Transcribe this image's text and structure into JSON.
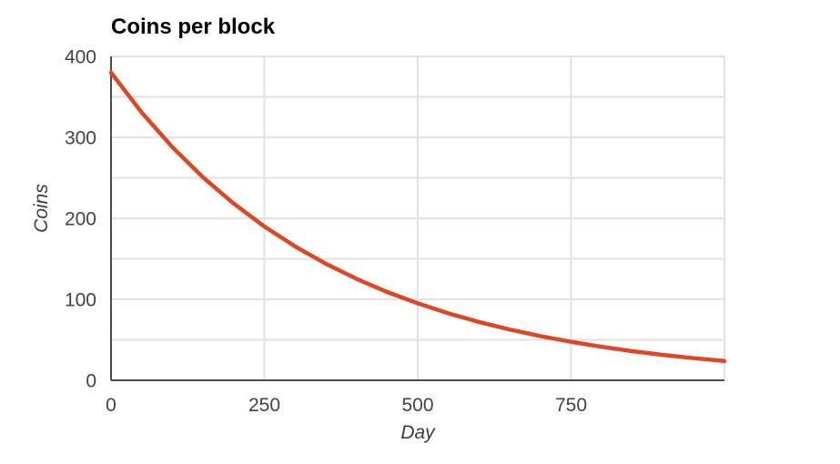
{
  "title": "Coins per block",
  "colors": {
    "background": "#ffffff",
    "series_line": "#dd4726",
    "gridline": "#e2e2e2",
    "axis_line": "#4d4d4d",
    "tick_label": "#444444",
    "axis_title": "#3d3d3d",
    "chart_title": "#000000"
  },
  "chart_data": {
    "type": "line",
    "title": "Coins per block",
    "xlabel": "Day",
    "ylabel": "Coins",
    "xlim": [
      0,
      1000
    ],
    "ylim": [
      0,
      400
    ],
    "x_ticks": [
      0,
      250,
      500,
      750
    ],
    "y_ticks": [
      0,
      100,
      200,
      300,
      400
    ],
    "x_gridlines": [
      250,
      500,
      750,
      1000
    ],
    "y_gridline_interval": 50,
    "grid": true,
    "legend": "none",
    "series": [
      {
        "name": "Coins per block",
        "x": [
          0,
          50,
          100,
          150,
          200,
          250,
          300,
          350,
          400,
          450,
          500,
          550,
          600,
          650,
          700,
          750,
          800,
          850,
          900,
          950,
          1000
        ],
        "y": [
          380,
          330.8,
          288.0,
          250.7,
          218.3,
          190,
          165.4,
          144.0,
          125.4,
          109.1,
          95,
          82.7,
          72.0,
          62.7,
          54.6,
          47.5,
          41.4,
          36.0,
          31.3,
          27.3,
          23.8
        ]
      }
    ]
  }
}
